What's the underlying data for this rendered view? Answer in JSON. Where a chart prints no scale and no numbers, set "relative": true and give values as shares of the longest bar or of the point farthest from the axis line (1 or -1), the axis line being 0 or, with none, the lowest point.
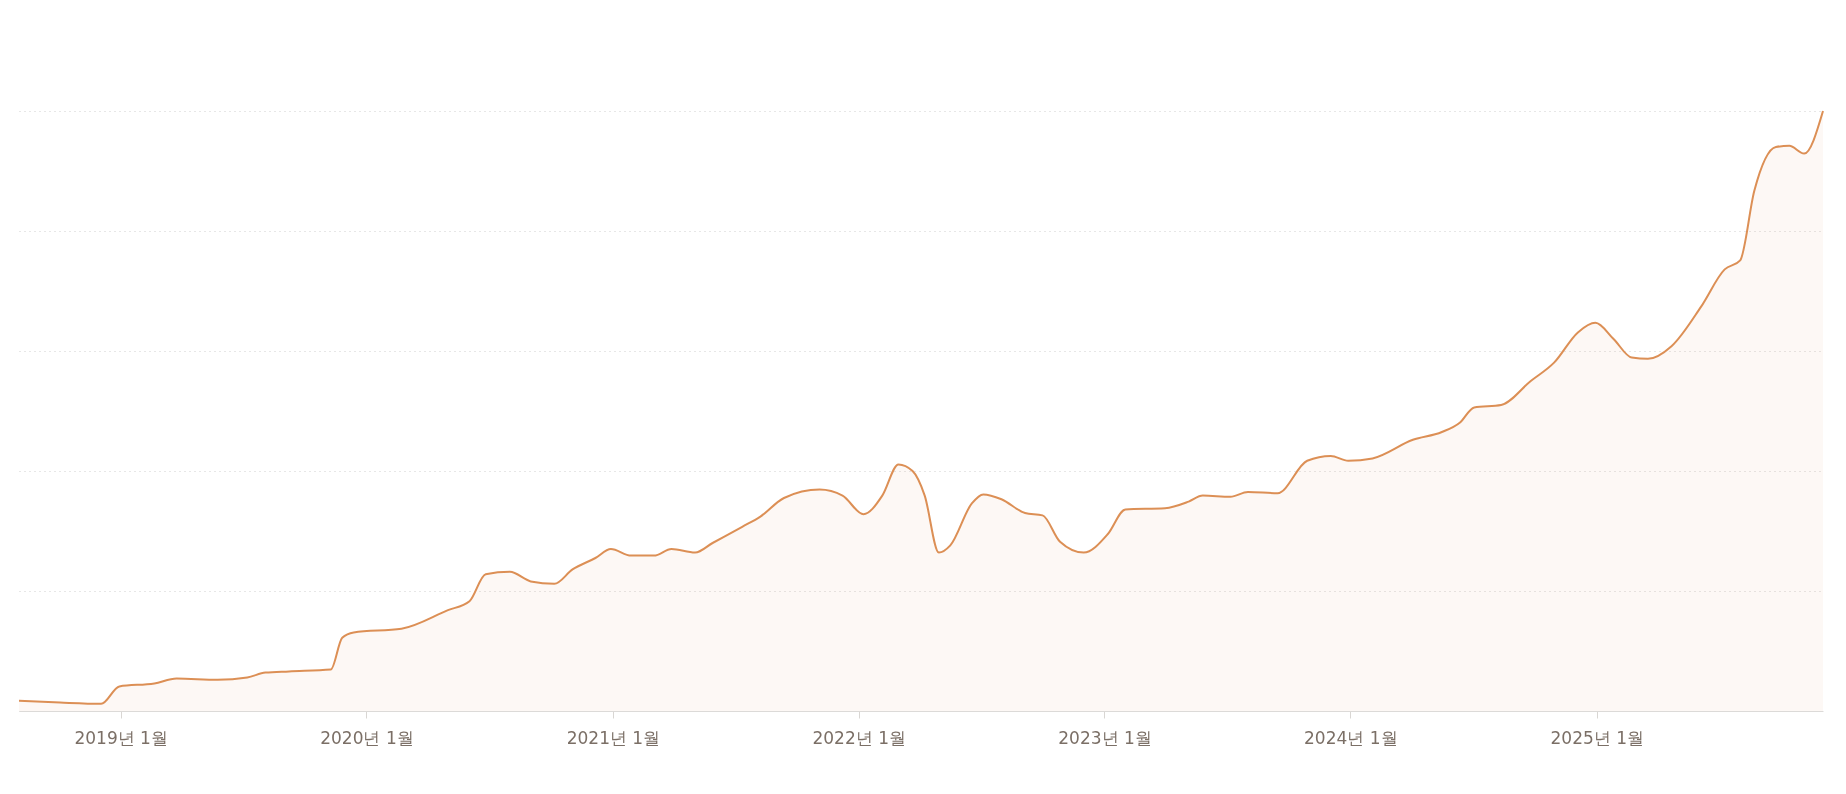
{
  "chart_data": {
    "type": "area",
    "relative": true,
    "grid": "y",
    "line_style": "solid",
    "xlim": [
      "2018-08-03",
      "2025-12-03"
    ],
    "xticks": [
      {
        "value": "2019-01-01",
        "label": "2019년 1월"
      },
      {
        "value": "2020-01-01",
        "label": "2020년 1월"
      },
      {
        "value": "2021-01-01",
        "label": "2021년 1월"
      },
      {
        "value": "2022-01-01",
        "label": "2022년 1월"
      },
      {
        "value": "2023-01-01",
        "label": "2023년 1월"
      },
      {
        "value": "2024-01-01",
        "label": "2024년 1월"
      },
      {
        "value": "2025-01-01",
        "label": "2025년 1월"
      }
    ],
    "x": [
      "2018-08-03",
      "2018-10-03",
      "2018-12-03",
      "2018-12-30",
      "2019-02-20",
      "2019-03-25",
      "2019-05-25",
      "2019-07-08",
      "2019-08-04",
      "2019-09-08",
      "2019-11-09",
      "2019-11-26",
      "2019-12-13",
      "2020-02-22",
      "2020-05-01",
      "2020-06-02",
      "2020-06-26",
      "2020-08-01",
      "2020-09-01",
      "2020-10-06",
      "2020-11-02",
      "2020-12-06",
      "2020-12-29",
      "2021-01-28",
      "2021-03-03",
      "2021-03-29",
      "2021-05-03",
      "2021-05-29",
      "2021-07-12",
      "2021-08-08",
      "2021-09-12",
      "2021-11-04",
      "2021-12-08",
      "2022-01-08",
      "2022-02-05",
      "2022-03-01",
      "2022-03-22",
      "2022-04-09",
      "2022-04-30",
      "2022-05-17",
      "2022-06-18",
      "2022-07-05",
      "2022-08-01",
      "2022-09-05",
      "2022-10-01",
      "2022-10-27",
      "2022-12-01",
      "2023-01-06",
      "2023-02-01",
      "2023-04-01",
      "2023-05-06",
      "2023-05-27",
      "2023-07-07",
      "2023-08-02",
      "2023-09-15",
      "2023-10-29",
      "2023-12-03",
      "2023-12-29",
      "2024-02-03",
      "2024-04-03",
      "2024-05-16",
      "2024-06-12",
      "2024-07-03",
      "2024-08-12",
      "2024-09-25",
      "2024-10-30",
      "2024-12-04",
      "2024-12-30",
      "2025-01-26",
      "2025-02-22",
      "2025-03-18",
      "2025-04-22",
      "2025-06-05",
      "2025-07-10",
      "2025-08-02",
      "2025-08-23",
      "2025-09-24",
      "2025-10-14",
      "2025-11-05",
      "2025-12-03"
    ],
    "series": [
      {
        "color": "#dc8f55",
        "values": [
          0.017,
          0.014,
          0.012,
          0.041,
          0.046,
          0.054,
          0.052,
          0.056,
          0.064,
          0.066,
          0.069,
          0.122,
          0.131,
          0.137,
          0.168,
          0.183,
          0.228,
          0.232,
          0.216,
          0.212,
          0.236,
          0.255,
          0.27,
          0.259,
          0.259,
          0.27,
          0.264,
          0.28,
          0.307,
          0.324,
          0.355,
          0.369,
          0.359,
          0.328,
          0.359,
          0.411,
          0.4,
          0.359,
          0.264,
          0.276,
          0.346,
          0.361,
          0.353,
          0.33,
          0.326,
          0.282,
          0.264,
          0.295,
          0.336,
          0.338,
          0.349,
          0.359,
          0.357,
          0.365,
          0.363,
          0.417,
          0.425,
          0.417,
          0.421,
          0.452,
          0.465,
          0.481,
          0.506,
          0.51,
          0.55,
          0.581,
          0.631,
          0.647,
          0.62,
          0.589,
          0.587,
          0.608,
          0.674,
          0.736,
          0.751,
          0.867,
          0.94,
          0.942,
          0.929,
          1
        ]
      }
    ]
  }
}
